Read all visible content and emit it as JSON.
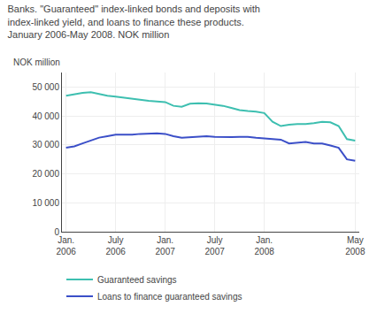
{
  "chart_data": {
    "type": "line",
    "title": "Banks. \"Guaranteed\" index-linked bonds and deposits with\nindex-linked yield, and loans to finance these products.\nJanuary 2006-May 2008. NOK million",
    "ylabel": "NOK million",
    "categories": [
      "Jan.\n2006",
      null,
      null,
      null,
      null,
      null,
      "July\n2006",
      null,
      null,
      null,
      null,
      null,
      "Jan.\n2007",
      null,
      null,
      null,
      null,
      null,
      "July\n2007",
      null,
      null,
      null,
      null,
      null,
      "Jan.\n2008",
      null,
      null,
      null,
      null,
      null,
      null,
      null,
      null,
      null,
      null,
      "May\n2008"
    ],
    "series": [
      {
        "name": "Guaranteed savings",
        "color": "#3dbfb0",
        "values": [
          47000,
          47500,
          48000,
          48200,
          47500,
          47000,
          46700,
          46300,
          45800,
          45500,
          45200,
          45000,
          44800,
          43500,
          43200,
          44200,
          44400,
          44300,
          44000,
          43500,
          42800,
          42000,
          41700,
          41500,
          41000,
          38000,
          36500,
          37000,
          37200,
          37200,
          37500,
          38000,
          37800,
          36500,
          32000,
          31500
        ]
      },
      {
        "name": "Loans to finance guaranteed savings",
        "color": "#3b4fc8",
        "values": [
          29000,
          29500,
          30500,
          31500,
          32500,
          33000,
          33500,
          33500,
          33500,
          33800,
          34000,
          34000,
          33800,
          33000,
          32500,
          32700,
          33000,
          33000,
          32800,
          32700,
          32700,
          32800,
          32800,
          32500,
          32200,
          32000,
          31800,
          30500,
          30800,
          31000,
          30500,
          30500,
          29800,
          29000,
          25000,
          24500
        ]
      }
    ],
    "ylim": [
      0,
      55000
    ],
    "yticks": [
      0,
      {
        "value": 10000,
        "label": "10 000"
      },
      {
        "value": 20000,
        "label": "20 000"
      },
      {
        "value": 30000,
        "label": "30 000"
      },
      {
        "value": 40000,
        "label": "40 000"
      },
      {
        "value": 50000,
        "label": "50 000"
      }
    ],
    "grid": true,
    "legend": "bottom"
  }
}
